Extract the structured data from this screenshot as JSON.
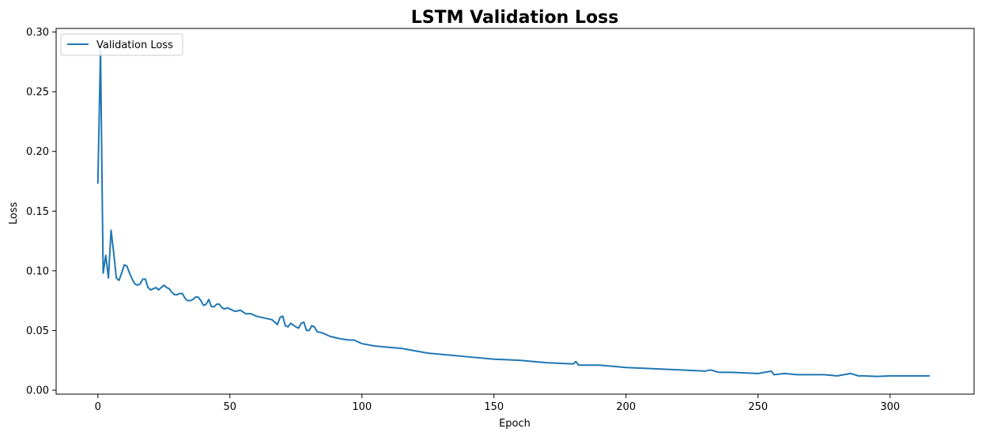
{
  "chart_data": {
    "type": "line",
    "title": "LSTM Validation Loss",
    "xlabel": "Epoch",
    "ylabel": "Loss",
    "xlim": [
      -15.8,
      331.8
    ],
    "ylim": [
      -0.0033,
      0.303
    ],
    "xticks": [
      0,
      50,
      100,
      150,
      200,
      250,
      300
    ],
    "yticks": [
      0.0,
      0.05,
      0.1,
      0.15,
      0.2,
      0.25,
      0.3
    ],
    "ytick_labels": [
      "0.00",
      "0.05",
      "0.10",
      "0.15",
      "0.20",
      "0.25",
      "0.30"
    ],
    "grid": false,
    "legend": "top-left",
    "series": [
      {
        "name": "Validation Loss",
        "color": "#1f77b4",
        "points": [
          [
            0,
            0.173
          ],
          [
            1,
            0.285
          ],
          [
            2,
            0.098
          ],
          [
            3,
            0.113
          ],
          [
            4,
            0.094
          ],
          [
            5,
            0.134
          ],
          [
            6,
            0.115
          ],
          [
            7,
            0.094
          ],
          [
            8,
            0.092
          ],
          [
            9,
            0.098
          ],
          [
            10,
            0.105
          ],
          [
            11,
            0.104
          ],
          [
            12,
            0.098
          ],
          [
            13,
            0.093
          ],
          [
            14,
            0.089
          ],
          [
            15,
            0.088
          ],
          [
            16,
            0.089
          ],
          [
            17,
            0.093
          ],
          [
            18,
            0.093
          ],
          [
            19,
            0.086
          ],
          [
            20,
            0.084
          ],
          [
            21,
            0.085
          ],
          [
            22,
            0.086
          ],
          [
            23,
            0.084
          ],
          [
            24,
            0.086
          ],
          [
            25,
            0.088
          ],
          [
            26,
            0.086
          ],
          [
            27,
            0.085
          ],
          [
            28,
            0.082
          ],
          [
            29,
            0.08
          ],
          [
            30,
            0.08
          ],
          [
            31,
            0.081
          ],
          [
            32,
            0.081
          ],
          [
            33,
            0.077
          ],
          [
            34,
            0.075
          ],
          [
            35,
            0.075
          ],
          [
            36,
            0.076
          ],
          [
            37,
            0.078
          ],
          [
            38,
            0.078
          ],
          [
            39,
            0.075
          ],
          [
            40,
            0.071
          ],
          [
            41,
            0.072
          ],
          [
            42,
            0.076
          ],
          [
            43,
            0.07
          ],
          [
            44,
            0.07
          ],
          [
            45,
            0.072
          ],
          [
            46,
            0.072
          ],
          [
            47,
            0.069
          ],
          [
            48,
            0.068
          ],
          [
            49,
            0.069
          ],
          [
            50,
            0.068
          ],
          [
            52,
            0.066
          ],
          [
            54,
            0.067
          ],
          [
            56,
            0.064
          ],
          [
            58,
            0.064
          ],
          [
            60,
            0.062
          ],
          [
            62,
            0.061
          ],
          [
            64,
            0.06
          ],
          [
            66,
            0.059
          ],
          [
            68,
            0.055
          ],
          [
            69,
            0.061
          ],
          [
            70,
            0.062
          ],
          [
            71,
            0.054
          ],
          [
            72,
            0.053
          ],
          [
            73,
            0.056
          ],
          [
            75,
            0.053
          ],
          [
            76,
            0.052
          ],
          [
            77,
            0.056
          ],
          [
            78,
            0.057
          ],
          [
            79,
            0.05
          ],
          [
            80,
            0.05
          ],
          [
            81,
            0.054
          ],
          [
            82,
            0.053
          ],
          [
            83,
            0.049
          ],
          [
            85,
            0.048
          ],
          [
            88,
            0.045
          ],
          [
            92,
            0.043
          ],
          [
            95,
            0.042
          ],
          [
            97,
            0.042
          ],
          [
            100,
            0.039
          ],
          [
            105,
            0.037
          ],
          [
            110,
            0.036
          ],
          [
            115,
            0.035
          ],
          [
            120,
            0.033
          ],
          [
            125,
            0.031
          ],
          [
            130,
            0.03
          ],
          [
            135,
            0.029
          ],
          [
            140,
            0.028
          ],
          [
            150,
            0.026
          ],
          [
            160,
            0.025
          ],
          [
            170,
            0.023
          ],
          [
            180,
            0.022
          ],
          [
            181,
            0.024
          ],
          [
            182,
            0.021
          ],
          [
            190,
            0.021
          ],
          [
            200,
            0.019
          ],
          [
            210,
            0.018
          ],
          [
            220,
            0.017
          ],
          [
            230,
            0.016
          ],
          [
            232,
            0.017
          ],
          [
            235,
            0.015
          ],
          [
            240,
            0.015
          ],
          [
            250,
            0.014
          ],
          [
            255,
            0.016
          ],
          [
            256,
            0.013
          ],
          [
            260,
            0.014
          ],
          [
            265,
            0.013
          ],
          [
            270,
            0.013
          ],
          [
            275,
            0.013
          ],
          [
            280,
            0.012
          ],
          [
            285,
            0.014
          ],
          [
            288,
            0.012
          ],
          [
            290,
            0.012
          ],
          [
            295,
            0.0115
          ],
          [
            300,
            0.012
          ],
          [
            305,
            0.012
          ],
          [
            310,
            0.012
          ],
          [
            315,
            0.012
          ]
        ]
      }
    ]
  }
}
